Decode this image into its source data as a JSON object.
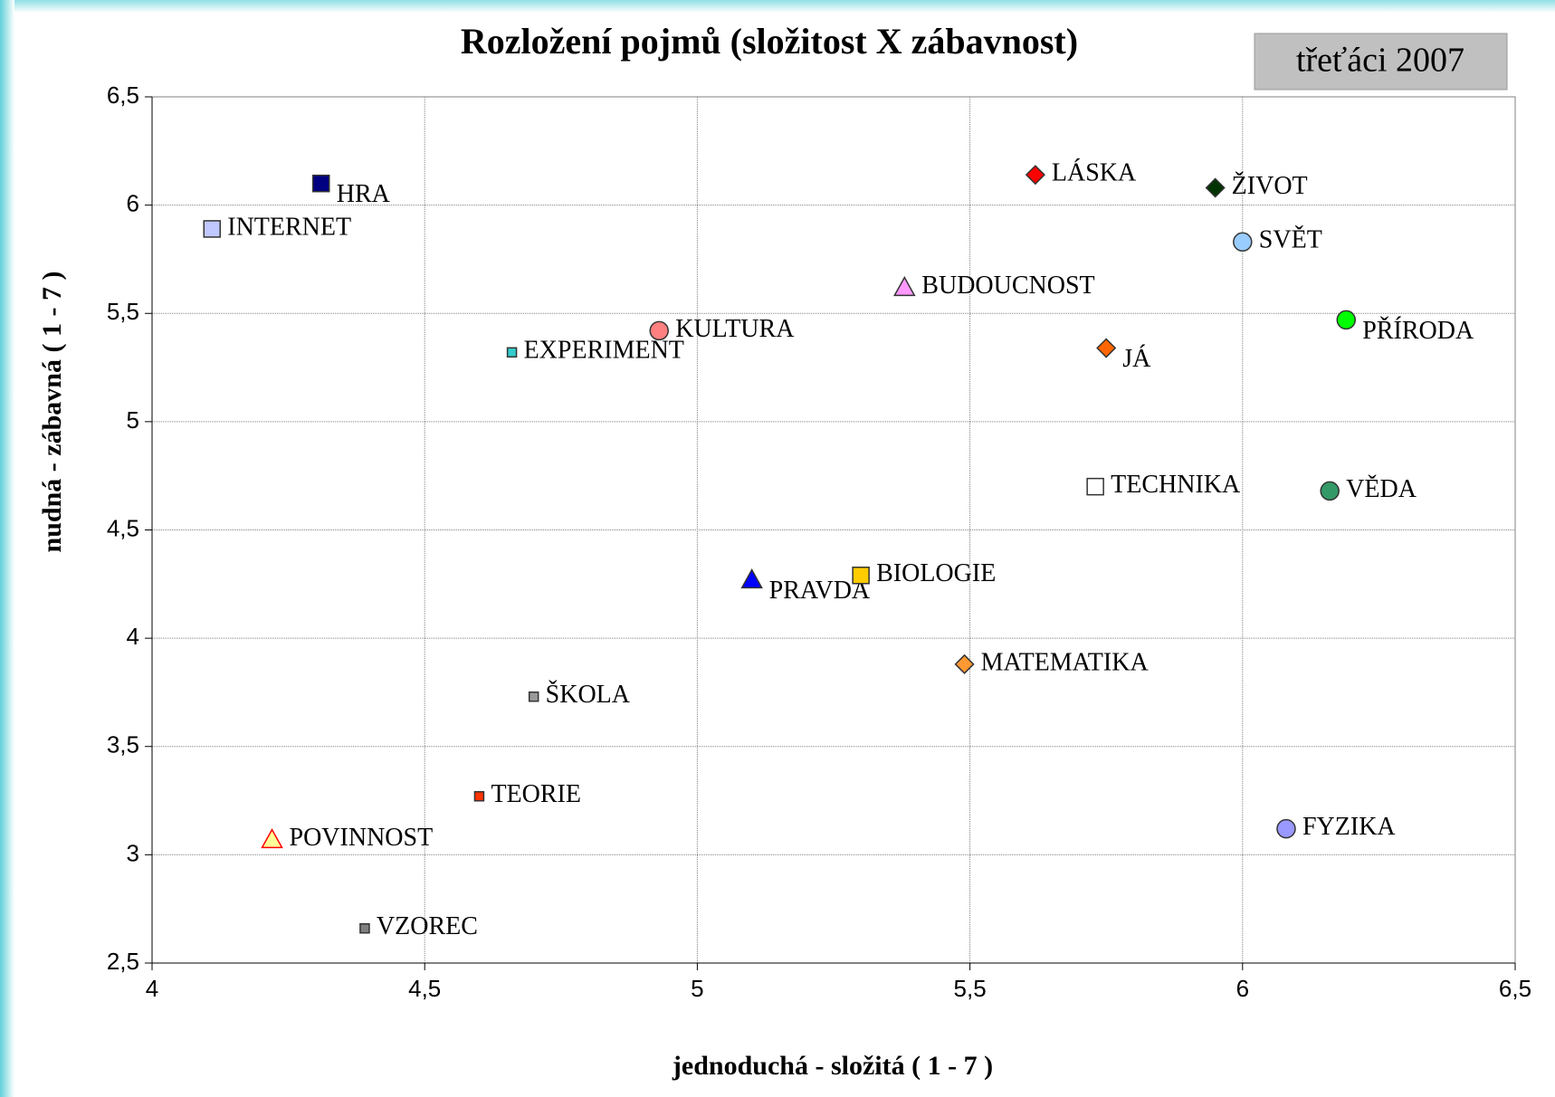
{
  "chart_data": {
    "type": "scatter",
    "title": "Rozložení pojmů (složitost X zábavnost)",
    "badge": "třeťáci 2007",
    "x_label": "jednoduchá - složitá ( 1 - 7 )",
    "y_label": "nudná - zábavná ( 1 - 7 )",
    "xlim": [
      4,
      6.5
    ],
    "xticks": [
      4,
      {
        "value": 4.5,
        "label": "4,5"
      },
      5,
      {
        "value": 5.5,
        "label": "5,5"
      },
      6,
      {
        "value": 6.5,
        "label": "6,5"
      }
    ],
    "ylim": [
      2.5,
      6.5
    ],
    "yticks": [
      {
        "value": 2.5,
        "label": "2,5"
      },
      3,
      {
        "value": 3.5,
        "label": "3,5"
      },
      4,
      {
        "value": 4.5,
        "label": "4,5"
      },
      5,
      {
        "value": 5.5,
        "label": "5,5"
      },
      6,
      {
        "value": 6.5,
        "label": "6,5"
      }
    ],
    "grid": true,
    "series": [
      {
        "name": "HRA",
        "marker": "square",
        "color": "#000080",
        "x": [
          4.31
        ],
        "values": [
          6.1
        ]
      },
      {
        "name": "INTERNET",
        "marker": "square",
        "color": "#c0c8ff",
        "x": [
          4.11
        ],
        "values": [
          5.89
        ]
      },
      {
        "name": "LÁSKA",
        "marker": "diamond",
        "color": "#ff0000",
        "x": [
          5.62
        ],
        "values": [
          6.14
        ]
      },
      {
        "name": "ŽIVOT",
        "marker": "diamond",
        "color": "#003300",
        "x": [
          5.95
        ],
        "values": [
          6.08
        ]
      },
      {
        "name": "SVĚT",
        "marker": "circle",
        "color": "#99ccff",
        "x": [
          6.0
        ],
        "values": [
          5.83
        ]
      },
      {
        "name": "BUDOUCNOST",
        "marker": "triangle",
        "color": "#ff99ff",
        "x": [
          5.38
        ],
        "values": [
          5.62
        ]
      },
      {
        "name": "KULTURA",
        "marker": "circle",
        "color": "#ff8080",
        "x": [
          4.93
        ],
        "values": [
          5.42
        ]
      },
      {
        "name": "EXPERIMENT",
        "marker": "small-square",
        "color": "#33cccc",
        "x": [
          4.66
        ],
        "values": [
          5.32
        ]
      },
      {
        "name": "PŘÍRODA",
        "marker": "circle",
        "color": "#00ff00",
        "x": [
          6.19
        ],
        "values": [
          5.47
        ]
      },
      {
        "name": "JÁ",
        "marker": "diamond",
        "color": "#ff6600",
        "x": [
          5.75
        ],
        "values": [
          5.34
        ]
      },
      {
        "name": "TECHNIKA",
        "marker": "square",
        "color": "#ffffff",
        "x": [
          5.73
        ],
        "values": [
          4.7
        ]
      },
      {
        "name": "VĚDA",
        "marker": "circle",
        "color": "#339966",
        "x": [
          6.16
        ],
        "values": [
          4.68
        ]
      },
      {
        "name": "PRAVDA",
        "marker": "triangle",
        "color": "#0000ff",
        "x": [
          5.1
        ],
        "values": [
          4.27
        ]
      },
      {
        "name": "BIOLOGIE",
        "marker": "square",
        "color": "#ffcc00",
        "x": [
          5.3
        ],
        "values": [
          4.29
        ]
      },
      {
        "name": "MATEMATIKA",
        "marker": "diamond",
        "color": "#ff9933",
        "x": [
          5.49
        ],
        "values": [
          3.88
        ]
      },
      {
        "name": "ŠKOLA",
        "marker": "small-square",
        "color": "#999999",
        "x": [
          4.7
        ],
        "values": [
          3.73
        ]
      },
      {
        "name": "TEORIE",
        "marker": "small-square",
        "color": "#ff3300",
        "x": [
          4.6
        ],
        "values": [
          3.27
        ]
      },
      {
        "name": "POVINNOST",
        "marker": "triangle",
        "color": "#ffff99",
        "x": [
          4.22
        ],
        "values": [
          3.07
        ]
      },
      {
        "name": "FYZIKA",
        "marker": "circle",
        "color": "#9999ff",
        "x": [
          6.08
        ],
        "values": [
          3.12
        ]
      },
      {
        "name": "VZOREC",
        "marker": "small-square",
        "color": "#808080",
        "x": [
          4.39
        ],
        "values": [
          2.66
        ]
      }
    ]
  }
}
